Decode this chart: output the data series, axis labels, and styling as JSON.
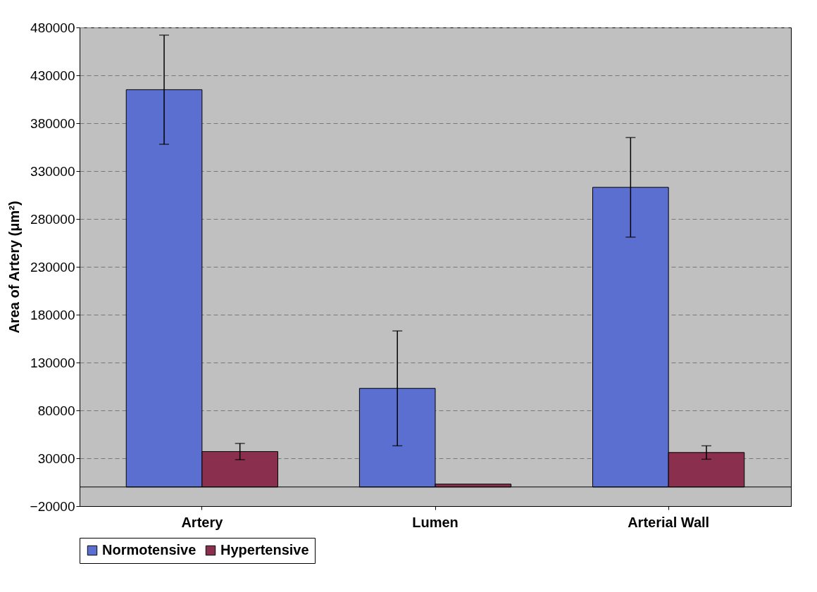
{
  "chart_data": {
    "type": "bar",
    "ylabel": "Area of Artery (μm²)",
    "categories": [
      "Artery",
      "Lumen",
      "Arterial Wall"
    ],
    "series": [
      {
        "name": "Normotensive",
        "color": "#5a6fd0",
        "values": [
          415000,
          103000,
          313000
        ],
        "errors": [
          57000,
          60000,
          52000
        ]
      },
      {
        "name": "Hypertensive",
        "color": "#8b2f4f",
        "values": [
          37000,
          3000,
          36000
        ],
        "errors": [
          8500,
          null,
          7000
        ]
      }
    ],
    "ylim": [
      -20000,
      480000
    ],
    "yticks": [
      -20000,
      30000,
      80000,
      130000,
      180000,
      230000,
      280000,
      330000,
      380000,
      430000,
      480000
    ],
    "grid": "y",
    "legend": "bottom"
  }
}
